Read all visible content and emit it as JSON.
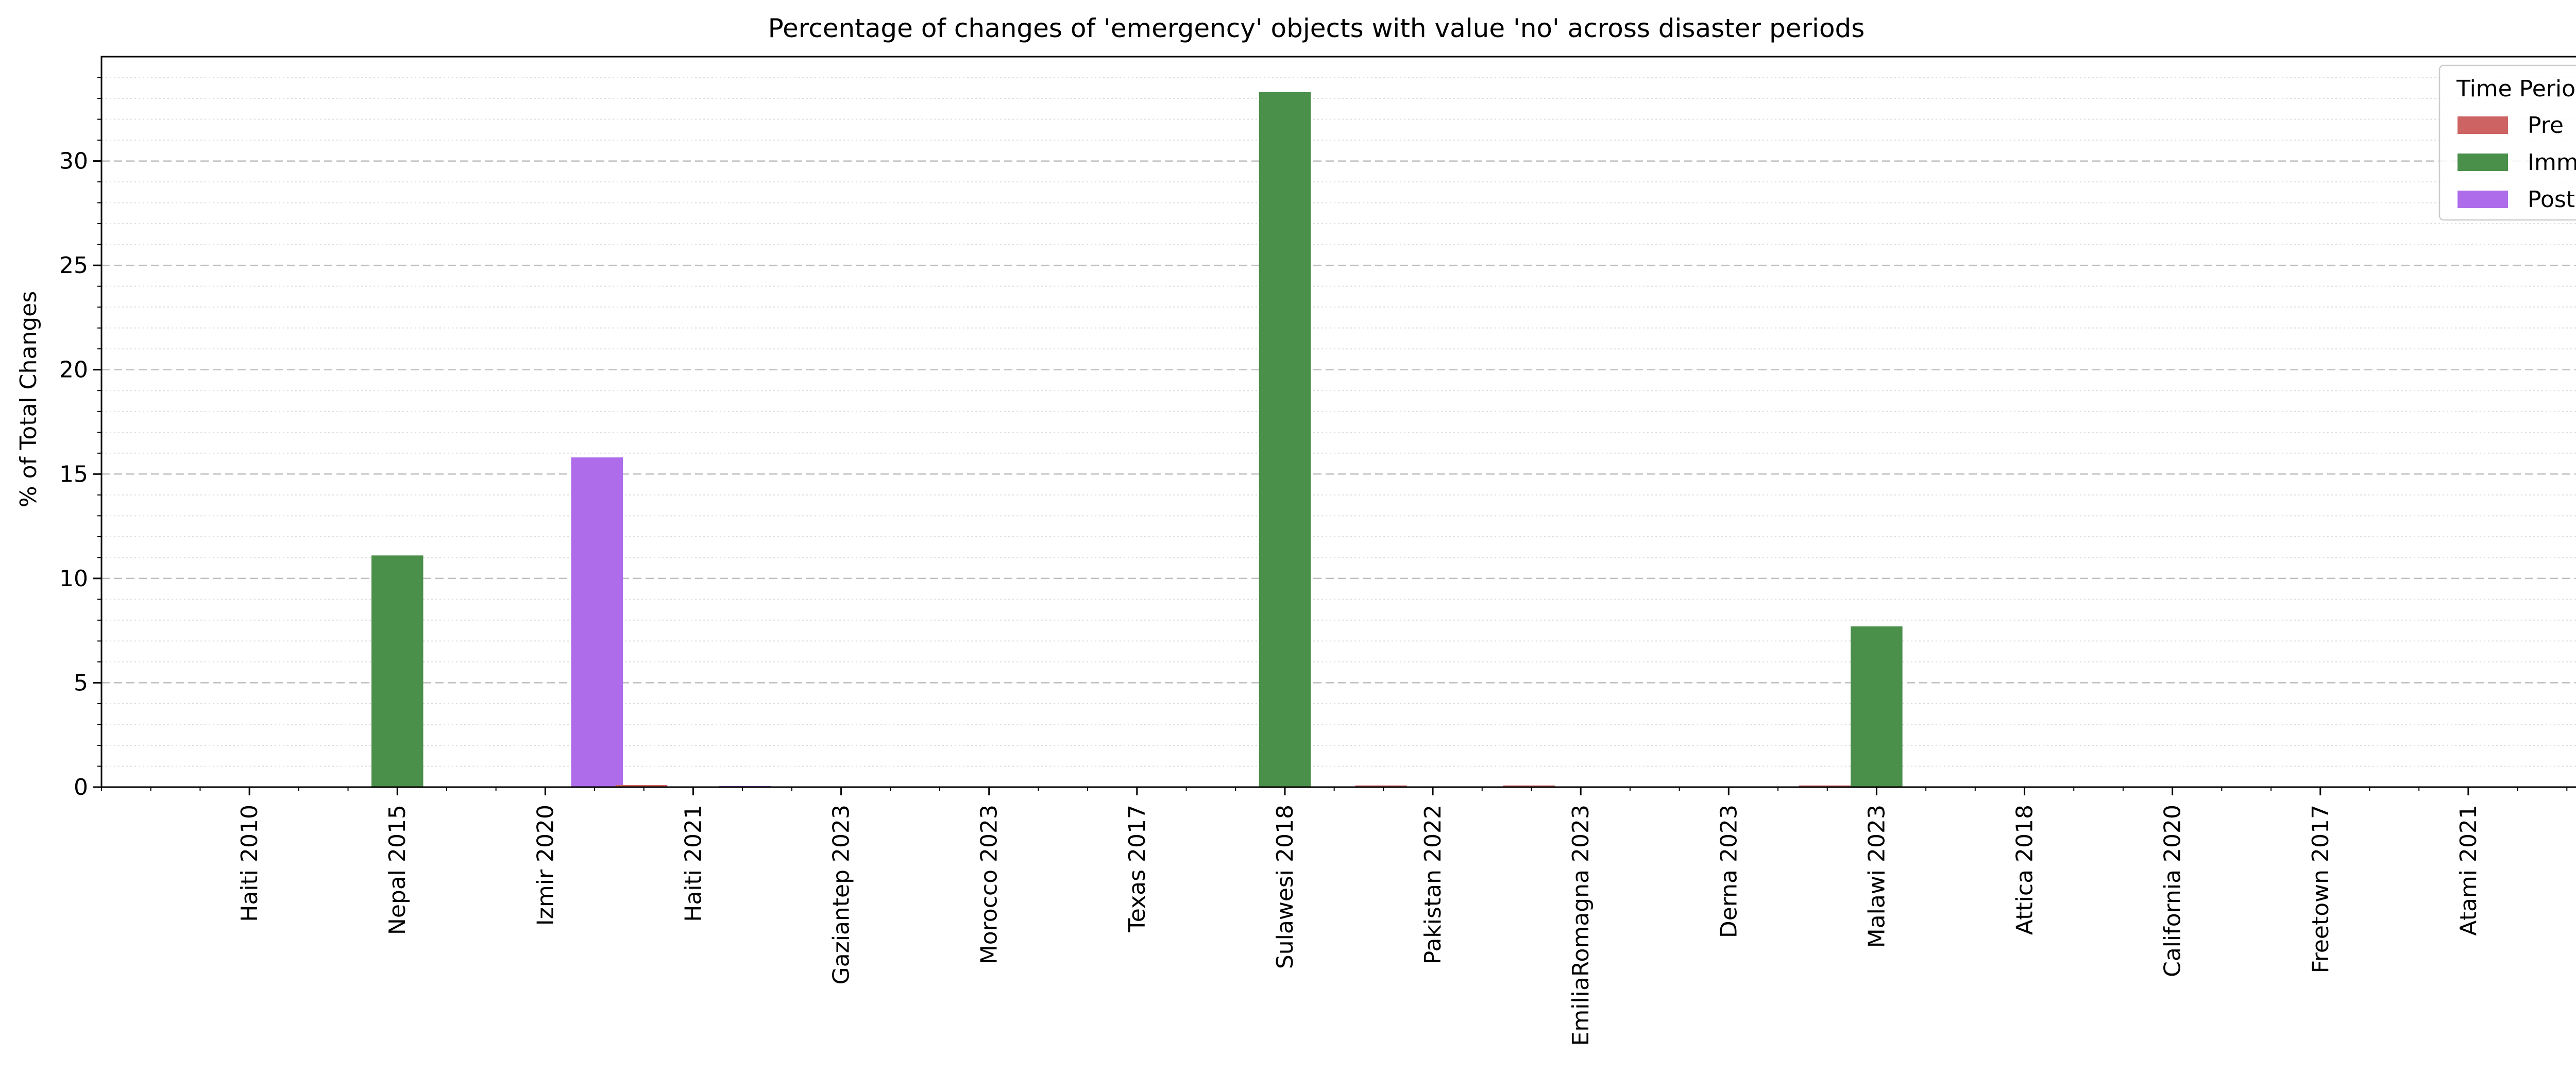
{
  "chart_data": {
    "type": "bar",
    "title": "Percentage of changes of 'emergency' objects with value 'no' across disaster periods",
    "xlabel": "",
    "ylabel": "% of Total Changes",
    "ylim": [
      0,
      35
    ],
    "yticks": [
      0,
      5,
      10,
      15,
      20,
      25,
      30
    ],
    "grid": true,
    "legend_position": "top-right",
    "legend_title": "Time Period",
    "categories": [
      "Haiti 2010",
      "Nepal 2015",
      "Izmir 2020",
      "Haiti 2021",
      "Gaziantep 2023",
      "Morocco 2023",
      "Texas 2017",
      "Sulawesi 2018",
      "Pakistan 2022",
      "EmiliaRomagna 2023",
      "Derna 2023",
      "Malawi 2023",
      "Attica 2018",
      "California 2020",
      "Freetown 2017",
      "Atami 2021"
    ],
    "series": [
      {
        "name": "Pre",
        "color": "#cd6363",
        "values": [
          0,
          0,
          0,
          0.1,
          0,
          0,
          0,
          0,
          0.08,
          0.08,
          0,
          0.08,
          0,
          0,
          0,
          0
        ]
      },
      {
        "name": "Imm",
        "color": "#4a8f4a",
        "values": [
          0,
          11.1,
          0,
          0,
          0,
          0,
          0,
          33.3,
          0,
          0,
          0,
          7.7,
          0,
          0,
          0,
          0
        ]
      },
      {
        "name": "Post",
        "color": "#ae6ceb",
        "values": [
          0,
          0,
          15.8,
          0.05,
          0,
          0,
          0,
          0,
          0,
          0,
          0,
          0,
          0,
          0,
          0,
          0
        ]
      }
    ]
  }
}
